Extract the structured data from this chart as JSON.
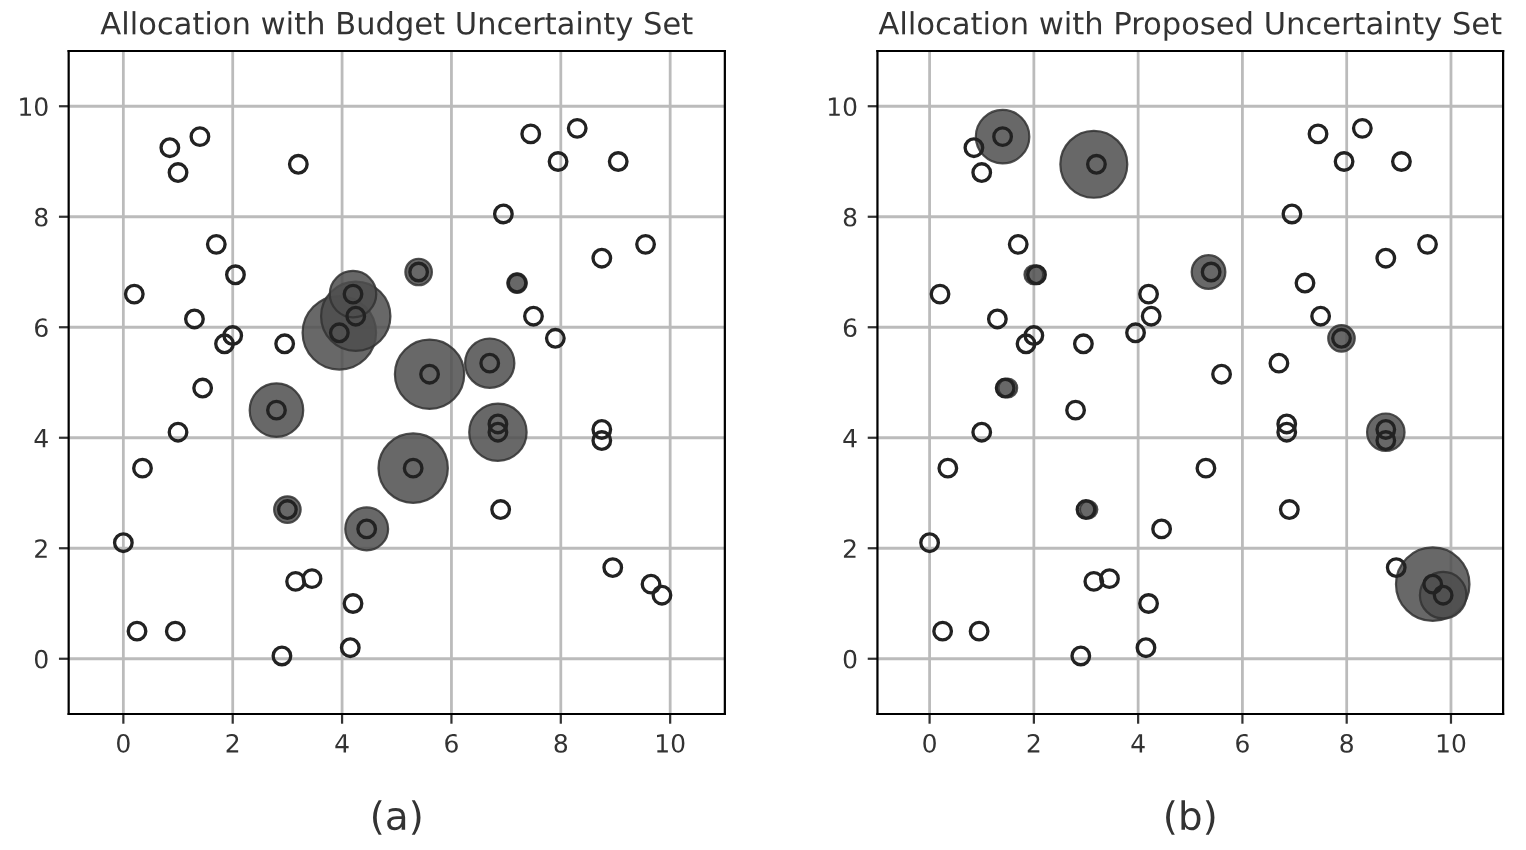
{
  "chart_data": [
    {
      "type": "bubble",
      "title": "Allocation with Budget Uncertainty Set",
      "annotations": [
        "(a)"
      ],
      "xlim": [
        -1,
        11
      ],
      "ylim": [
        -1,
        11
      ],
      "xticks": [
        0,
        2,
        4,
        6,
        8,
        10
      ],
      "yticks": [
        0,
        2,
        4,
        6,
        8,
        10
      ],
      "grid": true,
      "legend": false,
      "series": [
        {
          "color": "#4d4d4d",
          "x": [
            5.3,
            5.6,
            3.95,
            4.25,
            4.2,
            6.85,
            2.8,
            6.7,
            4.45,
            3.0,
            5.4,
            7.2
          ],
          "values": [
            3.45,
            5.15,
            5.9,
            6.2,
            6.6,
            4.1,
            4.5,
            5.35,
            2.35,
            2.7,
            7.0,
            6.8
          ],
          "sizes": [
            0.89,
            0.89,
            1,
            0.89,
            0.4,
            0.61,
            0.53,
            0.45,
            0.34,
            0.13,
            0.13,
            0.07
          ]
        },
        {
          "type": "scatter",
          "color": "#222222",
          "marker": "circle",
          "x": [
            0.85,
            1.0,
            1.4,
            3.2,
            7.45,
            8.3,
            7.95,
            9.05,
            6.95,
            1.7,
            2.05,
            0.2,
            8.75,
            9.55,
            5.4,
            7.2,
            4.2,
            4.25,
            1.3,
            7.5,
            1.85,
            2.0,
            2.95,
            3.95,
            7.9,
            6.7,
            5.6,
            1.45,
            2.8,
            6.85,
            6.85,
            8.75,
            8.75,
            1.0,
            0.35,
            5.3,
            3.0,
            6.9,
            4.45,
            0.0,
            3.15,
            3.45,
            4.2,
            8.95,
            9.65,
            9.85,
            0.25,
            0.95,
            2.9,
            4.15
          ],
          "values": [
            9.25,
            8.8,
            9.45,
            8.95,
            9.5,
            9.6,
            9.0,
            9.0,
            8.05,
            7.5,
            6.95,
            6.6,
            7.25,
            7.5,
            7.0,
            6.8,
            6.6,
            6.2,
            6.15,
            6.2,
            5.7,
            5.85,
            5.7,
            5.9,
            5.8,
            5.35,
            5.15,
            4.9,
            4.5,
            4.25,
            4.1,
            4.15,
            3.95,
            4.1,
            3.45,
            3.45,
            2.7,
            2.7,
            2.35,
            2.1,
            1.4,
            1.45,
            1.0,
            1.65,
            1.35,
            1.15,
            0.5,
            0.5,
            0.05,
            0.2
          ]
        }
      ]
    },
    {
      "type": "bubble",
      "title": "Allocation with Proposed Uncertainty Set",
      "annotations": [
        "(b)"
      ],
      "xlim": [
        -1,
        11
      ],
      "ylim": [
        -1,
        11
      ],
      "xticks": [
        0,
        2,
        4,
        6,
        8,
        10
      ],
      "yticks": [
        0,
        2,
        4,
        6,
        8,
        10
      ],
      "grid": true,
      "legend": false,
      "series": [
        {
          "color": "#4d4d4d",
          "x": [
            9.65,
            3.15,
            1.4,
            9.85,
            8.75,
            5.35,
            7.9,
            2.0,
            1.5,
            3.05
          ],
          "values": [
            1.35,
            8.95,
            9.45,
            1.15,
            4.1,
            7.0,
            5.8,
            6.95,
            4.9,
            2.7
          ],
          "sizes": [
            1,
            0.83,
            0.53,
            0.4,
            0.26,
            0.21,
            0.13,
            0.065,
            0.065,
            0.056
          ]
        },
        {
          "type": "scatter",
          "color": "#222222",
          "marker": "circle",
          "x": [
            0.85,
            1.0,
            1.4,
            3.2,
            7.45,
            8.3,
            7.95,
            9.05,
            6.95,
            1.7,
            2.05,
            0.2,
            8.75,
            9.55,
            5.4,
            7.2,
            4.2,
            4.25,
            1.3,
            7.5,
            1.85,
            2.0,
            2.95,
            3.95,
            7.9,
            6.7,
            5.6,
            1.45,
            2.8,
            6.85,
            6.85,
            8.75,
            8.75,
            1.0,
            0.35,
            5.3,
            3.0,
            6.9,
            4.45,
            0.0,
            3.15,
            3.45,
            4.2,
            8.95,
            9.65,
            9.85,
            0.25,
            0.95,
            2.9,
            4.15
          ],
          "values": [
            9.25,
            8.8,
            9.45,
            8.95,
            9.5,
            9.6,
            9.0,
            9.0,
            8.05,
            7.5,
            6.95,
            6.6,
            7.25,
            7.5,
            7.0,
            6.8,
            6.6,
            6.2,
            6.15,
            6.2,
            5.7,
            5.85,
            5.7,
            5.9,
            5.8,
            5.35,
            5.15,
            4.9,
            4.5,
            4.25,
            4.1,
            4.15,
            3.95,
            4.1,
            3.45,
            3.45,
            2.7,
            2.7,
            2.35,
            2.1,
            1.4,
            1.45,
            1.0,
            1.65,
            1.35,
            1.15,
            0.5,
            0.5,
            0.05,
            0.2
          ]
        }
      ]
    }
  ]
}
